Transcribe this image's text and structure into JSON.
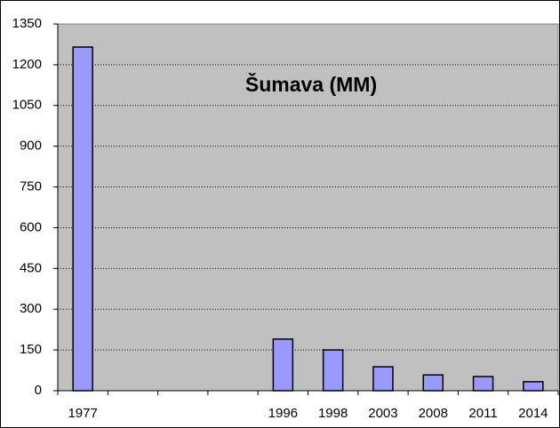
{
  "chart_data": {
    "type": "bar",
    "title": "Šumava (MM)",
    "categories": [
      "1977",
      null,
      null,
      null,
      "1996",
      "1998",
      "2003",
      "2008",
      "2011",
      "2014"
    ],
    "values": [
      1265,
      null,
      null,
      null,
      190,
      150,
      88,
      58,
      52,
      33
    ],
    "color": "#9999ff",
    "ylim": [
      0,
      1350
    ],
    "yticks": [
      0,
      150,
      300,
      450,
      600,
      750,
      900,
      1050,
      1200,
      1350
    ],
    "grid": true
  }
}
